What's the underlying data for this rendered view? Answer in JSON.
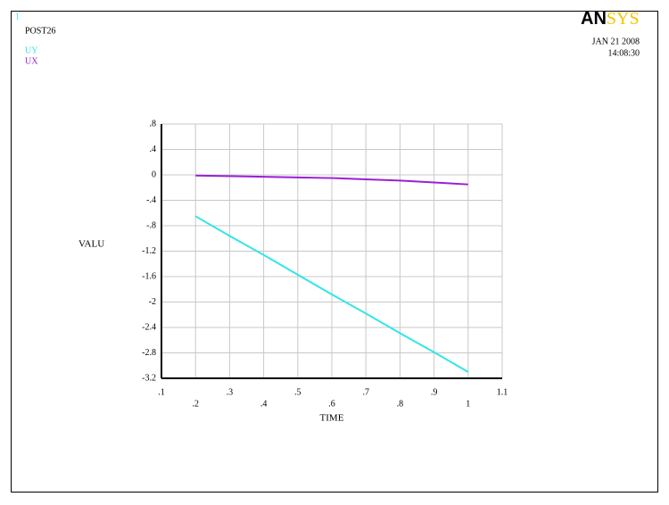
{
  "chart_data": {
    "type": "line",
    "window_number": "1",
    "label": "POST26",
    "logo_dark": "AN",
    "logo_light": "SYS",
    "date": "JAN 21 2008",
    "time": "14:08:30",
    "x_label": "TIME",
    "y_label": "VALU",
    "x": [
      0.2,
      0.3,
      0.4,
      0.5,
      0.6,
      0.7,
      0.8,
      0.9,
      1
    ],
    "series": [
      {
        "name": "UY",
        "color": "#33e6e6",
        "values": [
          -0.65,
          -0.96,
          -1.26,
          -1.57,
          -1.88,
          -2.18,
          -2.49,
          -2.79,
          -3.1
        ]
      },
      {
        "name": "UX",
        "color": "#9b1fd6",
        "values": [
          -0.01,
          -0.02,
          -0.03,
          -0.04,
          -0.05,
          -0.07,
          -0.09,
          -0.12,
          -0.15
        ]
      }
    ],
    "xlim": [
      0.1,
      1.1
    ],
    "xticks": [
      {
        "value": 0.1,
        "label": ".1"
      },
      {
        "value": 0.2,
        "label": ".2"
      },
      {
        "value": 0.3,
        "label": ".3"
      },
      {
        "value": 0.4,
        "label": ".4"
      },
      {
        "value": 0.5,
        "label": ".5"
      },
      {
        "value": 0.6,
        "label": ".6"
      },
      {
        "value": 0.7,
        "label": ".7"
      },
      {
        "value": 0.8,
        "label": ".8"
      },
      {
        "value": 0.9,
        "label": ".9"
      },
      1,
      1.1
    ],
    "ylim": [
      -3.2,
      0.8
    ],
    "yticks": [
      -3.2,
      -2.8,
      -2.4,
      -2,
      -1.6,
      -1.2,
      {
        "value": -0.8,
        "label": "-.8"
      },
      {
        "value": -0.4,
        "label": "-.4"
      },
      0,
      {
        "value": 0.4,
        "label": ".4"
      },
      {
        "value": 0.8,
        "label": ".8"
      }
    ],
    "grid": true
  }
}
